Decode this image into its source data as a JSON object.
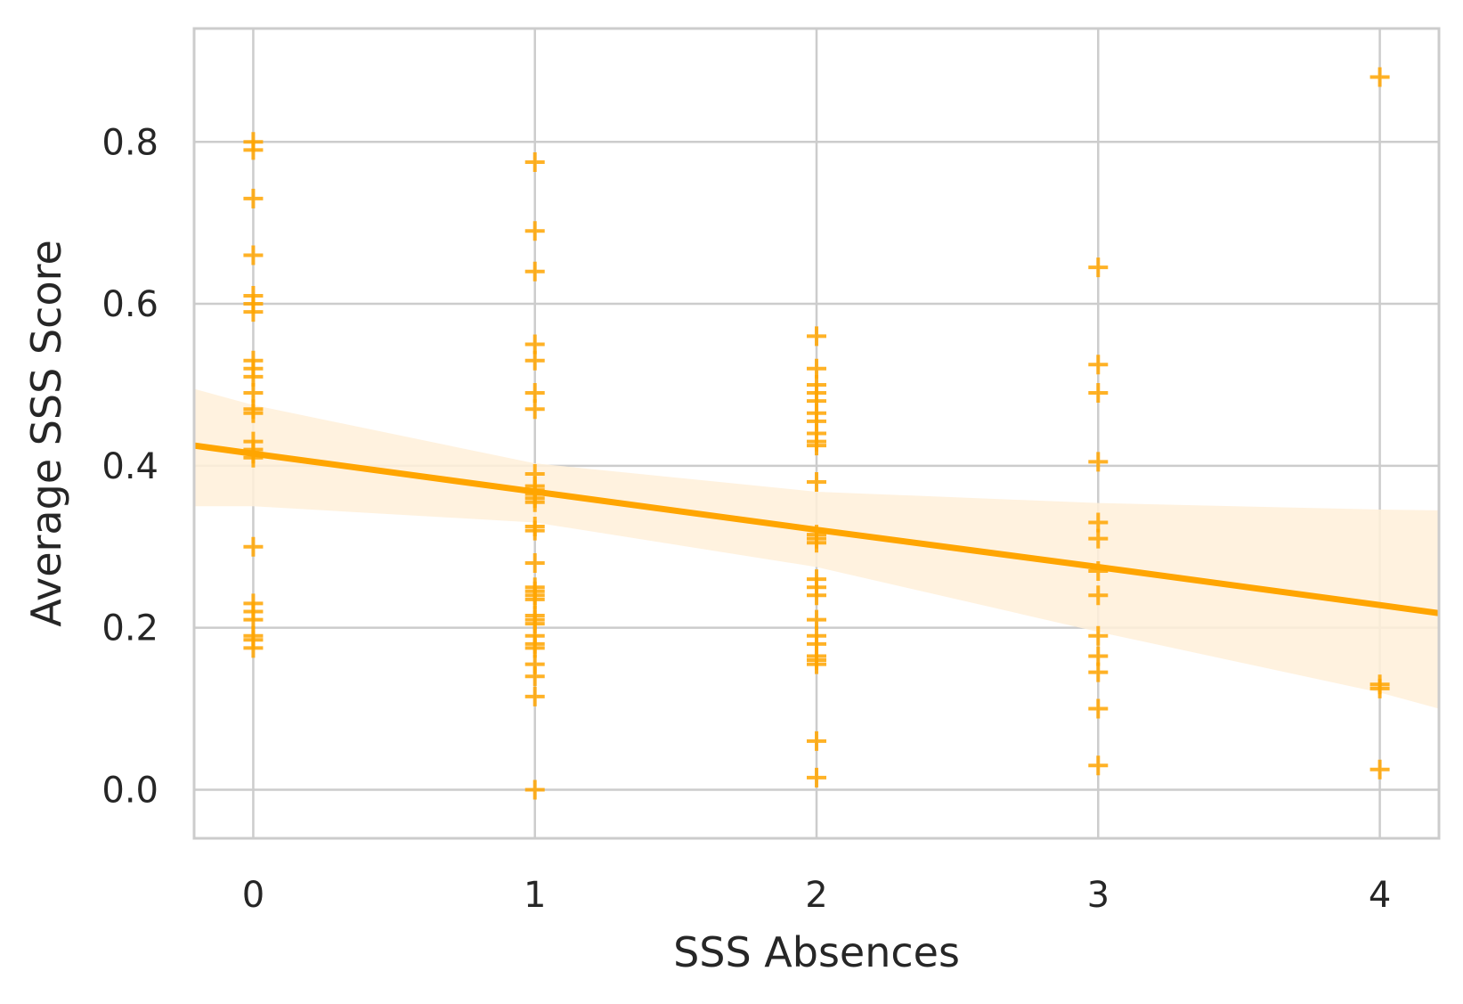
{
  "chart_data": {
    "type": "scatter",
    "title": "",
    "xlabel": "SSS Absences",
    "ylabel": "Average SSS Score",
    "xlim": [
      -0.21,
      4.21
    ],
    "ylim": [
      -0.06,
      0.94
    ],
    "xticks": [
      0,
      1,
      2,
      3,
      4
    ],
    "xtick_labels": [
      "0",
      "1",
      "2",
      "3",
      "4"
    ],
    "yticks": [
      0.0,
      0.2,
      0.4,
      0.6,
      0.8
    ],
    "ytick_labels": [
      "0.0",
      "0.2",
      "0.4",
      "0.6",
      "0.8"
    ],
    "grid": true,
    "legend": "none",
    "marker": "plus",
    "color": "#FFA500",
    "band_color": "#FFF0D9",
    "points": [
      {
        "x": 0,
        "y": 0.8
      },
      {
        "x": 0,
        "y": 0.79
      },
      {
        "x": 0,
        "y": 0.73
      },
      {
        "x": 0,
        "y": 0.66
      },
      {
        "x": 0,
        "y": 0.61
      },
      {
        "x": 0,
        "y": 0.6
      },
      {
        "x": 0,
        "y": 0.59
      },
      {
        "x": 0,
        "y": 0.53
      },
      {
        "x": 0,
        "y": 0.52
      },
      {
        "x": 0,
        "y": 0.51
      },
      {
        "x": 0,
        "y": 0.49
      },
      {
        "x": 0,
        "y": 0.47
      },
      {
        "x": 0,
        "y": 0.465
      },
      {
        "x": 0,
        "y": 0.43
      },
      {
        "x": 0,
        "y": 0.42
      },
      {
        "x": 0,
        "y": 0.415
      },
      {
        "x": 0,
        "y": 0.41
      },
      {
        "x": 0,
        "y": 0.3
      },
      {
        "x": 0,
        "y": 0.23
      },
      {
        "x": 0,
        "y": 0.22
      },
      {
        "x": 0,
        "y": 0.21
      },
      {
        "x": 0,
        "y": 0.19
      },
      {
        "x": 0,
        "y": 0.185
      },
      {
        "x": 0,
        "y": 0.175
      },
      {
        "x": 1,
        "y": 0.775
      },
      {
        "x": 1,
        "y": 0.69
      },
      {
        "x": 1,
        "y": 0.64
      },
      {
        "x": 1,
        "y": 0.55
      },
      {
        "x": 1,
        "y": 0.53
      },
      {
        "x": 1,
        "y": 0.49
      },
      {
        "x": 1,
        "y": 0.47
      },
      {
        "x": 1,
        "y": 0.39
      },
      {
        "x": 1,
        "y": 0.375
      },
      {
        "x": 1,
        "y": 0.37
      },
      {
        "x": 1,
        "y": 0.365
      },
      {
        "x": 1,
        "y": 0.36
      },
      {
        "x": 1,
        "y": 0.355
      },
      {
        "x": 1,
        "y": 0.325
      },
      {
        "x": 1,
        "y": 0.32
      },
      {
        "x": 1,
        "y": 0.28
      },
      {
        "x": 1,
        "y": 0.25
      },
      {
        "x": 1,
        "y": 0.245
      },
      {
        "x": 1,
        "y": 0.24
      },
      {
        "x": 1,
        "y": 0.235
      },
      {
        "x": 1,
        "y": 0.215
      },
      {
        "x": 1,
        "y": 0.21
      },
      {
        "x": 1,
        "y": 0.205
      },
      {
        "x": 1,
        "y": 0.19
      },
      {
        "x": 1,
        "y": 0.18
      },
      {
        "x": 1,
        "y": 0.175
      },
      {
        "x": 1,
        "y": 0.155
      },
      {
        "x": 1,
        "y": 0.14
      },
      {
        "x": 1,
        "y": 0.115
      },
      {
        "x": 1,
        "y": 0.0
      },
      {
        "x": 2,
        "y": 0.56
      },
      {
        "x": 2,
        "y": 0.52
      },
      {
        "x": 2,
        "y": 0.5
      },
      {
        "x": 2,
        "y": 0.49
      },
      {
        "x": 2,
        "y": 0.48
      },
      {
        "x": 2,
        "y": 0.465
      },
      {
        "x": 2,
        "y": 0.455
      },
      {
        "x": 2,
        "y": 0.44
      },
      {
        "x": 2,
        "y": 0.43
      },
      {
        "x": 2,
        "y": 0.425
      },
      {
        "x": 2,
        "y": 0.38
      },
      {
        "x": 2,
        "y": 0.315
      },
      {
        "x": 2,
        "y": 0.31
      },
      {
        "x": 2,
        "y": 0.305
      },
      {
        "x": 2,
        "y": 0.26
      },
      {
        "x": 2,
        "y": 0.25
      },
      {
        "x": 2,
        "y": 0.24
      },
      {
        "x": 2,
        "y": 0.21
      },
      {
        "x": 2,
        "y": 0.19
      },
      {
        "x": 2,
        "y": 0.18
      },
      {
        "x": 2,
        "y": 0.165
      },
      {
        "x": 2,
        "y": 0.16
      },
      {
        "x": 2,
        "y": 0.155
      },
      {
        "x": 2,
        "y": 0.06
      },
      {
        "x": 2,
        "y": 0.015
      },
      {
        "x": 3,
        "y": 0.645
      },
      {
        "x": 3,
        "y": 0.525
      },
      {
        "x": 3,
        "y": 0.49
      },
      {
        "x": 3,
        "y": 0.405
      },
      {
        "x": 3,
        "y": 0.33
      },
      {
        "x": 3,
        "y": 0.31
      },
      {
        "x": 3,
        "y": 0.27
      },
      {
        "x": 3,
        "y": 0.24
      },
      {
        "x": 3,
        "y": 0.19
      },
      {
        "x": 3,
        "y": 0.165
      },
      {
        "x": 3,
        "y": 0.145
      },
      {
        "x": 3,
        "y": 0.1
      },
      {
        "x": 3,
        "y": 0.03
      },
      {
        "x": 4,
        "y": 0.88
      },
      {
        "x": 4,
        "y": 0.13
      },
      {
        "x": 4,
        "y": 0.125
      },
      {
        "x": 4,
        "y": 0.025
      }
    ],
    "regression": {
      "x": [
        -0.21,
        0,
        1,
        2,
        3,
        4,
        4.21
      ],
      "y": [
        0.425,
        0.415,
        0.368,
        0.321,
        0.275,
        0.228,
        0.218
      ],
      "ci_upper": [
        0.495,
        0.475,
        0.403,
        0.368,
        0.354,
        0.346,
        0.345
      ],
      "ci_lower": [
        0.35,
        0.35,
        0.33,
        0.275,
        0.195,
        0.12,
        0.1
      ]
    }
  }
}
